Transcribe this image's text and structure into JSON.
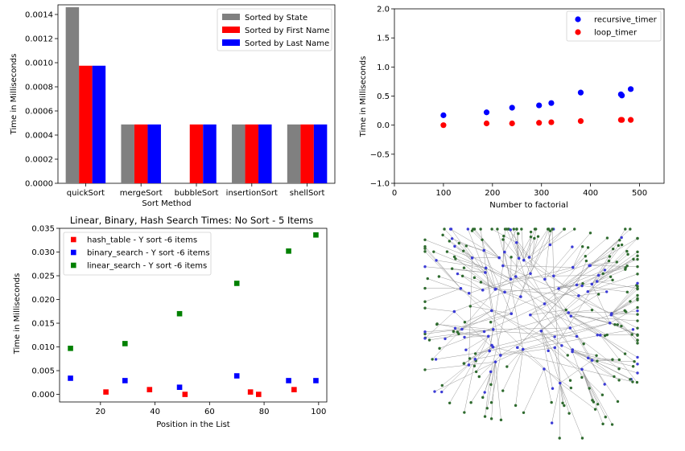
{
  "chart_data": [
    {
      "type": "bar",
      "title": "",
      "xlabel": "Sort Method",
      "ylabel": "Time in Milliseconds",
      "categories": [
        "quickSort",
        "mergeSort",
        "bubbleSort",
        "insertionSort",
        "shellSort"
      ],
      "series": [
        {
          "name": "Sorted by State",
          "color": "#808080",
          "values": [
            0.00146,
            0.000488,
            0,
            0.000488,
            0.000488
          ]
        },
        {
          "name": "Sorted by First Name",
          "color": "#ff0000",
          "values": [
            0.000975,
            0.000488,
            0.000488,
            0.000488,
            0.000488
          ]
        },
        {
          "name": "Sorted by Last Name",
          "color": "#0000ff",
          "values": [
            0.000975,
            0.000488,
            0.000488,
            0.000488,
            0.000488
          ]
        }
      ],
      "ylim": [
        0,
        0.00148
      ],
      "yticks": [
        "0.0000",
        "0.0002",
        "0.0004",
        "0.0006",
        "0.0008",
        "0.0010",
        "0.0012",
        "0.0014"
      ],
      "yticks_values": [
        0,
        0.0002,
        0.0004,
        0.0006,
        0.0008,
        0.001,
        0.0012,
        0.0014
      ],
      "legend": "top-right",
      "grid": false
    },
    {
      "type": "scatter",
      "title": "",
      "xlabel": "Number to factorial",
      "ylabel": "Time in Milliseconds",
      "xlim": [
        0,
        550
      ],
      "ylim": [
        -1.0,
        2.0
      ],
      "xticks": [
        "0",
        "100",
        "200",
        "300",
        "400",
        "500"
      ],
      "xticks_values": [
        0,
        100,
        200,
        300,
        400,
        500
      ],
      "yticks": [
        "−1.0",
        "−0.5",
        "0.0",
        "0.5",
        "1.0",
        "1.5",
        "2.0"
      ],
      "yticks_values": [
        -1.0,
        -0.5,
        0.0,
        0.5,
        1.0,
        1.5,
        2.0
      ],
      "series": [
        {
          "name": "recursive_timer",
          "color": "#0000ff",
          "x": [
            100,
            188,
            240,
            295,
            320,
            380,
            462,
            464,
            482
          ],
          "y": [
            0.17,
            0.22,
            0.3,
            0.34,
            0.38,
            0.56,
            0.53,
            0.51,
            0.62
          ]
        },
        {
          "name": "loop_timer",
          "color": "#ff0000",
          "x": [
            100,
            188,
            240,
            295,
            320,
            380,
            462,
            464,
            482
          ],
          "y": [
            0.0,
            0.03,
            0.03,
            0.04,
            0.05,
            0.07,
            0.09,
            0.09,
            0.09
          ]
        }
      ],
      "legend": "top-right",
      "grid": false
    },
    {
      "type": "scatter",
      "title": "Linear, Binary, Hash Search Times: No Sort - 5 Items",
      "xlabel": "Position in the List",
      "ylabel": "Time in Milliseconds",
      "xlim": [
        5,
        103
      ],
      "ylim": [
        -0.0016,
        0.035
      ],
      "xticks": [
        "20",
        "40",
        "60",
        "80",
        "100"
      ],
      "xticks_values": [
        20,
        40,
        60,
        80,
        100
      ],
      "yticks": [
        "0.000",
        "0.005",
        "0.010",
        "0.015",
        "0.020",
        "0.025",
        "0.030",
        "0.035"
      ],
      "yticks_values": [
        0,
        0.005,
        0.01,
        0.015,
        0.02,
        0.025,
        0.03,
        0.035
      ],
      "series": [
        {
          "name": "hash_table - Y sort -6 items",
          "color": "#ff0000",
          "x": [
            22,
            38,
            51,
            75,
            78,
            91
          ],
          "y": [
            0.0005,
            0.001,
            0.0,
            0.0005,
            0.0,
            0.001
          ]
        },
        {
          "name": "binary_search - Y sort -6 items",
          "color": "#0000ff",
          "x": [
            9,
            29,
            49,
            70,
            89,
            99
          ],
          "y": [
            0.0034,
            0.0029,
            0.0015,
            0.0039,
            0.0029,
            0.0029
          ]
        },
        {
          "name": "linear_search - Y sort -6 items",
          "color": "#008000",
          "x": [
            9,
            29,
            49,
            70,
            89,
            99
          ],
          "y": [
            0.0097,
            0.0107,
            0.017,
            0.0234,
            0.0302,
            0.0336
          ]
        }
      ],
      "legend": "top-left",
      "grid": false
    },
    {
      "type": "diagram",
      "description_kind": "network-graph",
      "node_colors": [
        "#2f6b2f",
        "#3b3bd6"
      ],
      "edge_color": "#9a9a9a"
    }
  ]
}
